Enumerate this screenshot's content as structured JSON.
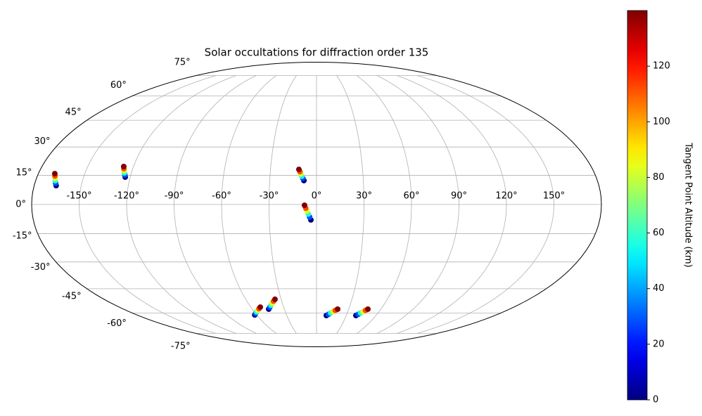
{
  "chart_data": {
    "type": "scatter",
    "projection": "mollweide",
    "title": "Solar occultations for diffraction order 135",
    "colorbar_label": "Tangent Point Altitude (km)",
    "colormap": "jet",
    "clim": [
      0,
      140
    ],
    "cticks": [
      0,
      20,
      40,
      60,
      80,
      100,
      120
    ],
    "grid": true,
    "xlim": [
      -180,
      180
    ],
    "ylim": [
      -90,
      90
    ],
    "xticks": [
      {
        "value": -150,
        "label": "-150°"
      },
      {
        "value": -120,
        "label": "-120°"
      },
      {
        "value": -90,
        "label": "-90°"
      },
      {
        "value": -60,
        "label": "-60°"
      },
      {
        "value": -30,
        "label": "-30°"
      },
      {
        "value": 0,
        "label": "0°"
      },
      {
        "value": 30,
        "label": "30°"
      },
      {
        "value": 60,
        "label": "60°"
      },
      {
        "value": 90,
        "label": "90°"
      },
      {
        "value": 120,
        "label": "120°"
      },
      {
        "value": 150,
        "label": "150°"
      }
    ],
    "yticks": [
      {
        "value": -75,
        "label": "-75°"
      },
      {
        "value": -60,
        "label": "-60°"
      },
      {
        "value": -45,
        "label": "-45°"
      },
      {
        "value": -30,
        "label": "-30°"
      },
      {
        "value": -15,
        "label": "-15°"
      },
      {
        "value": 0,
        "label": "0°"
      },
      {
        "value": 15,
        "label": "15°"
      },
      {
        "value": 30,
        "label": "30°"
      },
      {
        "value": 45,
        "label": "45°"
      },
      {
        "value": 60,
        "label": "60°"
      },
      {
        "value": 75,
        "label": "75°"
      }
    ],
    "series": [
      {
        "x": [
          -166,
          -166.7,
          -167.4,
          -168,
          -168.7,
          -169.4
        ],
        "y": [
          9.7,
          10.9,
          12.2,
          13.4,
          14.7,
          15.9
        ],
        "c": [
          0,
          28,
          56,
          84,
          112,
          140
        ]
      },
      {
        "x": [
          -123.2,
          -123.8,
          -124.5,
          -125.1,
          -125.8,
          -126.4
        ],
        "y": [
          14.1,
          15.2,
          16.3,
          17.4,
          18.5,
          19.6
        ],
        "c": [
          0,
          28,
          56,
          84,
          112,
          140
        ]
      },
      {
        "x": [
          -8.1,
          -8.8,
          -9.5,
          -10.1,
          -10.8,
          -11.5
        ],
        "y": [
          12.3,
          13.5,
          14.6,
          15.8,
          16.9,
          18.1
        ],
        "c": [
          0,
          28,
          56,
          84,
          112,
          140
        ]
      },
      {
        "x": [
          -3.6,
          -4.4,
          -5.2,
          -6,
          -6.8,
          -7.6
        ],
        "y": [
          -7.9,
          -6.4,
          -4.9,
          -3.4,
          -1.9,
          -0.4
        ],
        "c": [
          0,
          28,
          56,
          84,
          112,
          140
        ]
      },
      {
        "x": [
          -61.9,
          -59.8,
          -57.7,
          -55.5,
          -53.4,
          -51.3
        ],
        "y": [
          -61.3,
          -60.3,
          -59.3,
          -58.2,
          -57.2,
          -56.2
        ],
        "c": [
          0,
          28,
          56,
          84,
          112,
          140
        ]
      },
      {
        "x": [
          -44.6,
          -42.7,
          -40.8,
          -39,
          -37.1,
          -35.2
        ],
        "y": [
          -57.5,
          -56.3,
          -55,
          -53.8,
          -52.5,
          -51.3
        ],
        "c": [
          0,
          28,
          56,
          84,
          112,
          140
        ]
      },
      {
        "x": [
          9.9,
          11.9,
          13.8,
          15.8,
          17.7,
          19.7
        ],
        "y": [
          -61.7,
          -60.9,
          -60,
          -59.2,
          -58.3,
          -57.5
        ],
        "c": [
          0,
          28,
          56,
          84,
          112,
          140
        ]
      },
      {
        "x": [
          39.8,
          41.4,
          43,
          44.7,
          46.3,
          47.9
        ],
        "y": [
          -61.7,
          -60.9,
          -60,
          -59.2,
          -58.3,
          -57.5
        ],
        "c": [
          0,
          28,
          56,
          84,
          112,
          140
        ]
      }
    ]
  }
}
